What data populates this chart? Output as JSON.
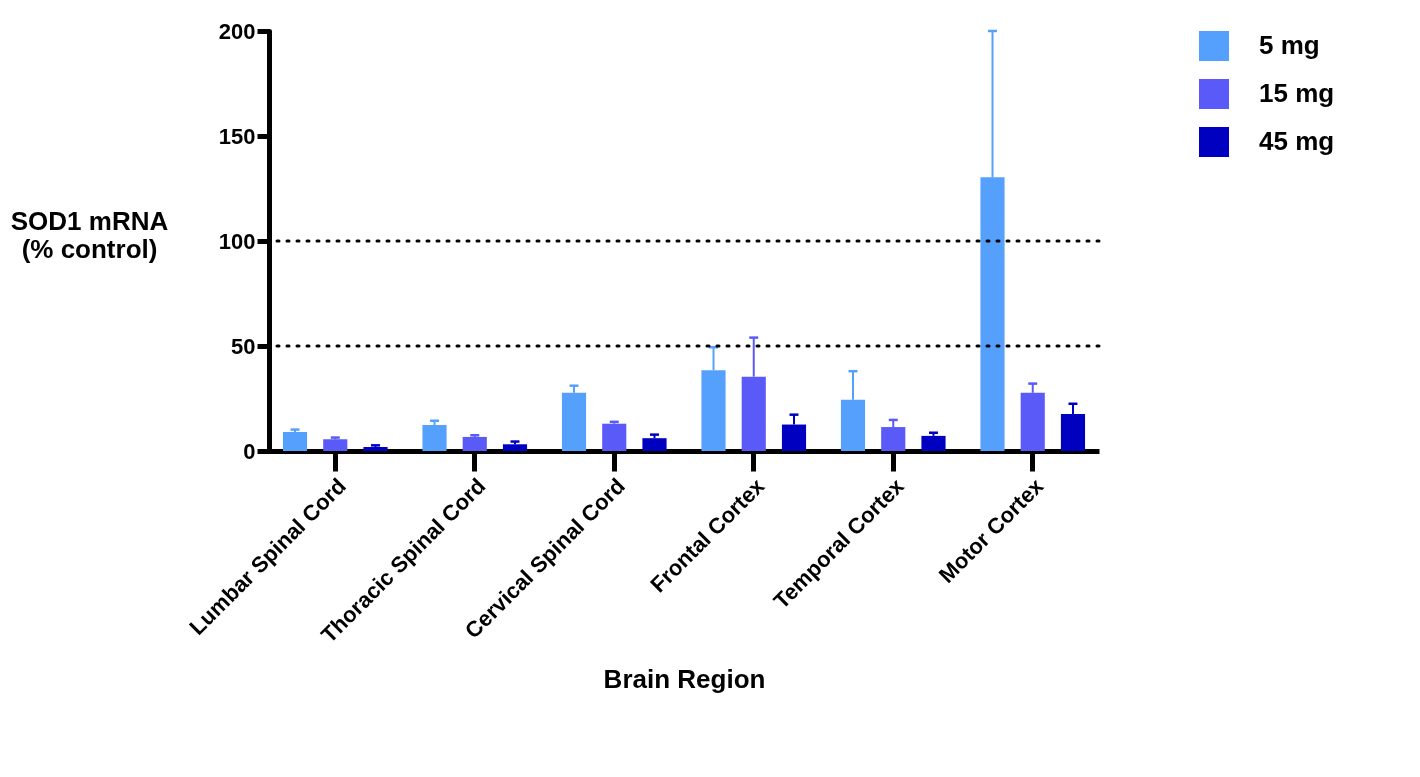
{
  "chart_data": {
    "type": "bar",
    "xlabel": "Brain  Region",
    "ylabel": "SOD1 mRNA\n(% control)",
    "categories": [
      "Lumbar Spinal Cord",
      "Thoracic Spinal Cord",
      "Cervical Spinal Cord",
      "Frontal Cortex",
      "Temporal Cortex",
      "Motor Cortex"
    ],
    "series": [
      {
        "name": "5 mg",
        "color": "#56a0fd",
        "values": [
          9.0,
          12.4,
          27.7,
          38.5,
          24.4,
          130.3
        ],
        "errors": [
          [
            9.0,
            10.2
          ],
          [
            12.4,
            14.4
          ],
          [
            27.7,
            31.1
          ],
          [
            38.5,
            49.4
          ],
          [
            24.4,
            38.0
          ],
          [
            130.3,
            200
          ]
        ]
      },
      {
        "name": "15 mg",
        "color": "#5a5af8",
        "values": [
          5.6,
          6.7,
          13.0,
          35.4,
          11.4,
          27.7
        ],
        "errors": [
          [
            5.6,
            6.4
          ],
          [
            6.7,
            7.5
          ],
          [
            13.0,
            13.9
          ],
          [
            35.4,
            54.0
          ],
          [
            11.4,
            14.8
          ],
          [
            27.7,
            32.1
          ]
        ]
      },
      {
        "name": "45 mg",
        "color": "#0000c0",
        "values": [
          1.9,
          3.2,
          6.1,
          12.6,
          7.2,
          17.6
        ],
        "errors": [
          [
            1.9,
            2.7
          ],
          [
            3.2,
            4.5
          ],
          [
            6.1,
            7.8
          ],
          [
            12.6,
            17.3
          ],
          [
            7.2,
            8.7
          ],
          [
            17.6,
            22.5
          ]
        ]
      }
    ],
    "ylim": [
      0,
      200
    ],
    "yticks": [
      0,
      50,
      100,
      150,
      200
    ],
    "ref_lines": [
      {
        "axis": "y",
        "value": 50,
        "line_style": "dotted"
      },
      {
        "axis": "y",
        "value": 100,
        "line_style": "dotted"
      }
    ],
    "grid": false,
    "legend": "right"
  }
}
